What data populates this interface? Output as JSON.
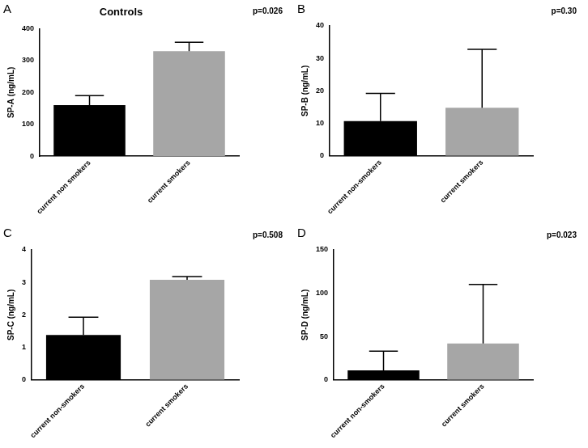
{
  "chart_data": [
    {
      "type": "bar",
      "panel_label": "A",
      "title": "Controls",
      "annotation": "p=0.026",
      "y_label": "SP-A (ng/mL)",
      "categories": [
        "current non smokers",
        "current smokers"
      ],
      "values": [
        160,
        330
      ],
      "errors": [
        30,
        28
      ],
      "colors": [
        "#000000",
        "#a6a6a6"
      ],
      "ylim": [
        0,
        400
      ],
      "yticks": [
        0,
        100,
        200,
        300,
        400
      ],
      "grid": false
    },
    {
      "type": "bar",
      "panel_label": "B",
      "annotation": "p=0.30",
      "y_label": "SP-B (ng/mL)",
      "categories": [
        "current non-smokers",
        "current smokers"
      ],
      "values": [
        10.7,
        14.8
      ],
      "errors": [
        8.5,
        18
      ],
      "colors": [
        "#000000",
        "#a6a6a6"
      ],
      "ylim": [
        0,
        40
      ],
      "yticks": [
        0,
        10,
        20,
        30,
        40
      ],
      "grid": false
    },
    {
      "type": "bar",
      "panel_label": "C",
      "annotation": "p=0.508",
      "y_label": "SP-C (ng/mL)",
      "categories": [
        "current non-smokers",
        "current smokers"
      ],
      "values": [
        1.38,
        3.08
      ],
      "errors": [
        0.55,
        0.1
      ],
      "colors": [
        "#000000",
        "#a6a6a6"
      ],
      "ylim": [
        0,
        4
      ],
      "yticks": [
        0,
        1,
        2,
        3,
        4
      ],
      "grid": false
    },
    {
      "type": "bar",
      "panel_label": "D",
      "annotation": "p=0.023",
      "y_label": "SP-D (ng/mL)",
      "categories": [
        "current non-smokers",
        "current smokers"
      ],
      "values": [
        11,
        42
      ],
      "errors": [
        22,
        68
      ],
      "colors": [
        "#000000",
        "#a6a6a6"
      ],
      "ylim": [
        0,
        150
      ],
      "yticks": [
        0,
        50,
        100,
        150
      ],
      "grid": false
    }
  ]
}
